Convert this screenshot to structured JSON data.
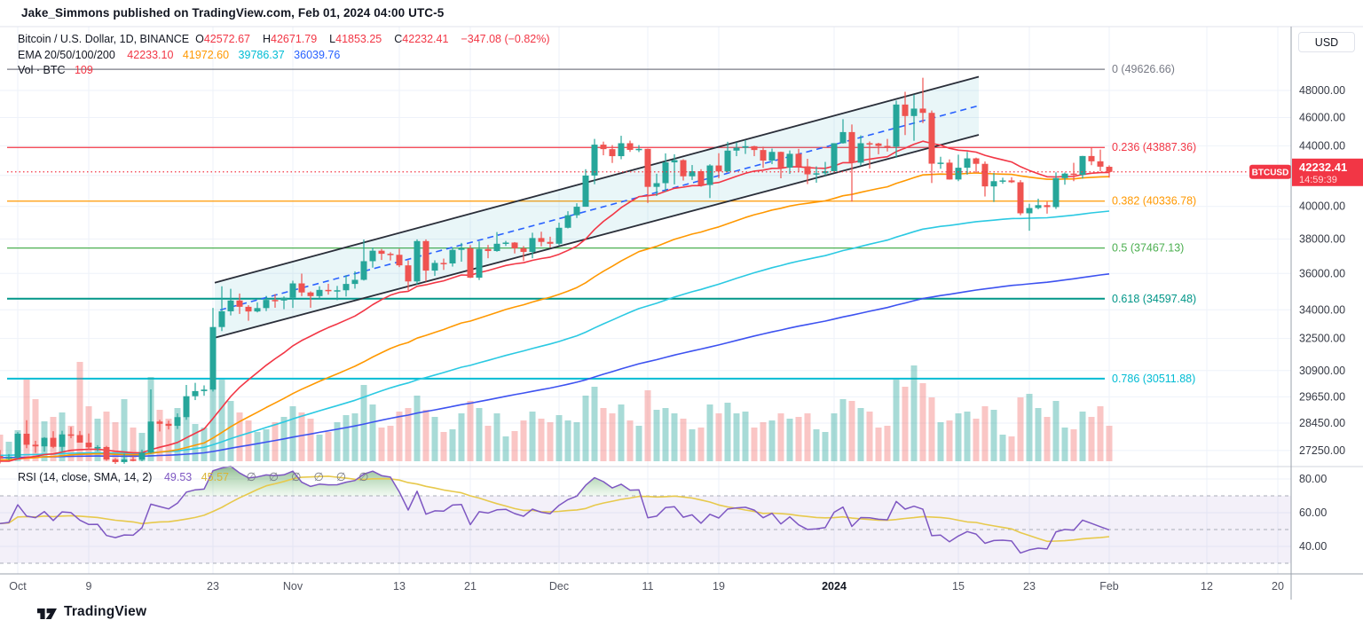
{
  "attribution": "Jake_Simmons published on TradingView.com, Feb 01, 2024 04:00 UTC-5",
  "symbol_legend": {
    "title": "Bitcoin / U.S. Dollar, 1D, BINANCE",
    "open_label": "O",
    "open": "42572.67",
    "high_label": "H",
    "high": "42671.79",
    "low_label": "L",
    "low": "41853.25",
    "close_label": "C",
    "close": "42232.41",
    "change": "−347.08 (−0.82%)"
  },
  "ema_legend": {
    "label": "EMA 20/50/100/200",
    "ema20": "42233.10",
    "ema50": "41972.60",
    "ema100": "39786.37",
    "ema200": "36039.76"
  },
  "volume_legend": {
    "label": "Vol · BTC",
    "value": "109"
  },
  "rsi_legend": {
    "label": "RSI (14, close, SMA, 14, 2)",
    "rsi_value": "49.53",
    "sma_value": "45.57",
    "empty_slots": [
      "∅",
      "∅",
      "∅",
      "∅",
      "∅",
      "∅"
    ]
  },
  "price_axis": {
    "currency_button": "USD",
    "ticks": [
      48000,
      46000,
      44000,
      40000,
      38000,
      36000,
      34000,
      32500,
      30900,
      29650,
      28450,
      27250
    ],
    "grid_extra": [
      42000
    ],
    "price_tag": {
      "symbol": "BTCUSD",
      "price": "42232.41",
      "countdown": "14:59:39"
    }
  },
  "time_axis": {
    "ticks": [
      {
        "label": "Oct",
        "day": 0
      },
      {
        "label": "9",
        "day": 8
      },
      {
        "label": "23",
        "day": 22
      },
      {
        "label": "Nov",
        "day": 31
      },
      {
        "label": "13",
        "day": 43
      },
      {
        "label": "21",
        "day": 51
      },
      {
        "label": "Dec",
        "day": 61
      },
      {
        "label": "11",
        "day": 71
      },
      {
        "label": "19",
        "day": 79
      },
      {
        "label": "2024",
        "day": 92,
        "bold": true
      },
      {
        "label": "15",
        "day": 106
      },
      {
        "label": "23",
        "day": 114
      },
      {
        "label": "Feb",
        "day": 123
      },
      {
        "label": "12",
        "day": 134
      },
      {
        "label": "20",
        "day": 142
      }
    ]
  },
  "rsi_axis": {
    "ticks": [
      80,
      60,
      40
    ],
    "dashed_levels": [
      70,
      50,
      30
    ],
    "band": [
      30,
      70
    ]
  },
  "fib_levels": [
    {
      "level": "0",
      "price": "49626.66",
      "value": 49626.66,
      "color": "#787b86"
    },
    {
      "level": "0.236",
      "price": "43887.36",
      "value": 43887.36,
      "color": "#f23645"
    },
    {
      "level": "0.382",
      "price": "40336.78",
      "value": 40336.78,
      "color": "#ff9800"
    },
    {
      "level": "0.5",
      "price": "37467.13",
      "value": 37467.13,
      "color": "#4caf50"
    },
    {
      "level": "0.618",
      "price": "34597.48",
      "value": 34597.48,
      "color": "#009688"
    },
    {
      "level": "0.786",
      "price": "30511.88",
      "value": 30511.88,
      "color": "#00bcd4"
    }
  ],
  "current_price": 42232.41,
  "brand": {
    "wordmark": "TradingView"
  },
  "colors": {
    "up": "#26a69a",
    "down": "#ef5350",
    "vol_up": "rgba(38,166,154,0.40)",
    "vol_down": "rgba(239,83,80,0.33)",
    "ema20": "#f23645",
    "ema50": "#ff9800",
    "ema100": "#2bc9e2",
    "ema200": "#3d52f0",
    "rsi_line": "#7e57c2",
    "rsi_sma": "#e7c94c",
    "rsi_band_fill": "rgba(126,87,194,0.09)",
    "tag_bg": "#f23645",
    "grid": "#eef2f9",
    "separator": "#d1d4dc",
    "axis_line": "#9aa0ab",
    "channel_line": "#2a2e39",
    "channel_fill": "rgba(42,165,190,0.10)",
    "channel_mid": "#2962ff",
    "axis_text": "#363a45",
    "time_text": "#50535e"
  },
  "chart_data": {
    "type": "candlestick",
    "symbol": "BTCUSD",
    "exchange": "BINANCE",
    "interval": "1D",
    "price_scale": "log",
    "ylim": [
      26550,
      53000
    ],
    "overlays": {
      "ema_periods": [
        20,
        50,
        100,
        200
      ],
      "ema_seeds": {
        "20": 26750,
        "50": 26850,
        "100": 27050,
        "200": 26950
      }
    },
    "rsi_settings": {
      "period": 14,
      "source": "close",
      "smoothing_type": "SMA",
      "smoothing_length": 14,
      "seed_gain": 150,
      "seed_loss": 130
    },
    "channel": {
      "lower": {
        "day1": 22.2,
        "price1": 32540,
        "day2": 108.3,
        "price2": 44770
      },
      "upper": {
        "day1": 22.2,
        "price1": 35480,
        "day2": 108.3,
        "price2": 49050
      },
      "mid": {
        "day1": 22.8,
        "price1": 33990,
        "day2": 108.3,
        "price2": 46870
      }
    },
    "candles_format": [
      "date",
      "open",
      "high",
      "low",
      "close",
      "volume_rel"
    ],
    "candles": [
      [
        "Sep 29",
        27020,
        27270,
        26700,
        26910,
        30
      ],
      [
        "Sep 30",
        26910,
        27100,
        26850,
        26960,
        22
      ],
      [
        "Oct 1",
        26960,
        28050,
        26900,
        27980,
        35
      ],
      [
        "Oct 2",
        27980,
        28580,
        27350,
        27500,
        92
      ],
      [
        "Oct 3",
        27500,
        27670,
        27150,
        27430,
        70
      ],
      [
        "Oct 4",
        27430,
        27830,
        27200,
        27800,
        45
      ],
      [
        "Oct 5",
        27800,
        28090,
        27350,
        27410,
        50
      ],
      [
        "Oct 6",
        27410,
        28110,
        27190,
        27950,
        55
      ],
      [
        "Oct 7",
        27950,
        28280,
        27780,
        27920,
        40
      ],
      [
        "Oct 8",
        27920,
        28100,
        27650,
        27590,
        112
      ],
      [
        "Oct 9",
        27590,
        27990,
        27270,
        27390,
        62
      ],
      [
        "Oct 10",
        27390,
        27480,
        27220,
        27400,
        48
      ],
      [
        "Oct 11",
        27400,
        27450,
        26820,
        26870,
        56
      ],
      [
        "Oct 12",
        26870,
        26930,
        26600,
        26760,
        44
      ],
      [
        "Oct 13",
        26760,
        27110,
        26690,
        26870,
        70
      ],
      [
        "Oct 14",
        26870,
        27010,
        26790,
        26860,
        38
      ],
      [
        "Oct 15",
        26860,
        27290,
        26800,
        27160,
        32
      ],
      [
        "Oct 16",
        27160,
        30000,
        27120,
        28520,
        95
      ],
      [
        "Oct 17",
        28520,
        28600,
        28080,
        28420,
        58
      ],
      [
        "Oct 18",
        28420,
        28560,
        28170,
        28330,
        48
      ],
      [
        "Oct 19",
        28330,
        28890,
        28190,
        28720,
        60
      ],
      [
        "Oct 20",
        28720,
        30210,
        28600,
        29680,
        72
      ],
      [
        "Oct 21",
        29680,
        30310,
        29500,
        29920,
        42
      ],
      [
        "Oct 22",
        29920,
        30190,
        29700,
        29990,
        38
      ],
      [
        "Oct 23",
        29990,
        34100,
        29900,
        33090,
        98
      ],
      [
        "Oct 24",
        33090,
        35280,
        32880,
        33920,
        92
      ],
      [
        "Oct 25",
        33920,
        35140,
        33700,
        34500,
        68
      ],
      [
        "Oct 26",
        34500,
        34880,
        33780,
        34160,
        55
      ],
      [
        "Oct 27",
        34160,
        34250,
        33420,
        33910,
        46
      ],
      [
        "Oct 28",
        33910,
        34400,
        33860,
        34090,
        33
      ],
      [
        "Oct 29",
        34090,
        34750,
        33930,
        34530,
        36
      ],
      [
        "Oct 30",
        34530,
        34850,
        34110,
        34500,
        44
      ],
      [
        "Oct 31",
        34500,
        34720,
        34030,
        34650,
        50
      ],
      [
        "Nov 1",
        34650,
        35590,
        34100,
        35440,
        62
      ],
      [
        "Nov 2",
        35440,
        35990,
        34740,
        34940,
        55
      ],
      [
        "Nov 3",
        34940,
        35000,
        34110,
        34740,
        48
      ],
      [
        "Nov 4",
        34740,
        35280,
        34610,
        35080,
        30
      ],
      [
        "Nov 5",
        35080,
        35420,
        34820,
        35050,
        33
      ],
      [
        "Nov 6",
        35050,
        35300,
        34520,
        35060,
        44
      ],
      [
        "Nov 7",
        35060,
        35900,
        34720,
        35410,
        52
      ],
      [
        "Nov 8",
        35410,
        36120,
        35150,
        35640,
        54
      ],
      [
        "Nov 9",
        35640,
        37970,
        35600,
        36700,
        86
      ],
      [
        "Nov 10",
        36700,
        37500,
        36330,
        37310,
        64
      ],
      [
        "Nov 11",
        37310,
        37410,
        36770,
        37130,
        38
      ],
      [
        "Nov 12",
        37130,
        37220,
        36740,
        37070,
        40
      ],
      [
        "Nov 13",
        37070,
        37420,
        36360,
        36460,
        56
      ],
      [
        "Nov 14",
        36460,
        36750,
        35060,
        35550,
        60
      ],
      [
        "Nov 15",
        35550,
        37980,
        35360,
        37880,
        74
      ],
      [
        "Nov 16",
        37880,
        37980,
        35540,
        36160,
        58
      ],
      [
        "Nov 17",
        36160,
        36750,
        35860,
        36600,
        50
      ],
      [
        "Nov 18",
        36600,
        36850,
        36200,
        36570,
        33
      ],
      [
        "Nov 19",
        36570,
        37500,
        36390,
        37360,
        36
      ],
      [
        "Nov 20",
        37360,
        37770,
        36670,
        37450,
        54
      ],
      [
        "Nov 21",
        37450,
        37640,
        35740,
        35760,
        68
      ],
      [
        "Nov 22",
        35760,
        37860,
        35630,
        37410,
        60
      ],
      [
        "Nov 23",
        37410,
        37650,
        36870,
        37290,
        40
      ],
      [
        "Nov 24",
        37290,
        38420,
        37250,
        37720,
        54
      ],
      [
        "Nov 25",
        37720,
        37890,
        37590,
        37790,
        28
      ],
      [
        "Nov 26",
        37790,
        37820,
        37150,
        37450,
        34
      ],
      [
        "Nov 27",
        37450,
        37580,
        36710,
        37240,
        46
      ],
      [
        "Nov 28",
        37240,
        38380,
        36870,
        38060,
        56
      ],
      [
        "Nov 29",
        38060,
        38440,
        37570,
        37830,
        48
      ],
      [
        "Nov 30",
        37830,
        38140,
        37500,
        37720,
        44
      ],
      [
        "Dec 1",
        37720,
        38990,
        37620,
        38680,
        52
      ],
      [
        "Dec 2",
        38680,
        39700,
        38640,
        39450,
        46
      ],
      [
        "Dec 3",
        39450,
        40200,
        39280,
        39980,
        44
      ],
      [
        "Dec 4",
        39980,
        42410,
        39980,
        41990,
        74
      ],
      [
        "Dec 5",
        41990,
        44480,
        41420,
        44080,
        84
      ],
      [
        "Dec 6",
        44080,
        44290,
        43350,
        43770,
        60
      ],
      [
        "Dec 7",
        43770,
        44050,
        42830,
        43290,
        54
      ],
      [
        "Dec 8",
        43290,
        44700,
        43080,
        44180,
        64
      ],
      [
        "Dec 9",
        44180,
        44360,
        43580,
        43720,
        46
      ],
      [
        "Dec 10",
        43720,
        44050,
        43570,
        43790,
        40
      ],
      [
        "Dec 11",
        43790,
        43810,
        40220,
        41250,
        80
      ],
      [
        "Dec 12",
        41250,
        42110,
        40660,
        41490,
        58
      ],
      [
        "Dec 13",
        41490,
        43480,
        40930,
        42870,
        60
      ],
      [
        "Dec 14",
        42870,
        43420,
        41410,
        43020,
        54
      ],
      [
        "Dec 15",
        43020,
        43080,
        41660,
        41940,
        48
      ],
      [
        "Dec 16",
        41940,
        42690,
        41700,
        42280,
        36
      ],
      [
        "Dec 17",
        42280,
        42410,
        41260,
        41370,
        38
      ],
      [
        "Dec 18",
        41370,
        42740,
        40530,
        42660,
        64
      ],
      [
        "Dec 19",
        42660,
        43490,
        41810,
        42260,
        54
      ],
      [
        "Dec 20",
        42260,
        44280,
        42210,
        43670,
        66
      ],
      [
        "Dec 21",
        43670,
        44240,
        43290,
        43870,
        54
      ],
      [
        "Dec 22",
        43870,
        44400,
        43440,
        43970,
        56
      ],
      [
        "Dec 23",
        43970,
        44000,
        43290,
        43710,
        38
      ],
      [
        "Dec 24",
        43710,
        43940,
        42500,
        42990,
        44
      ],
      [
        "Dec 25",
        42990,
        43810,
        42750,
        43580,
        46
      ],
      [
        "Dec 26",
        43580,
        43600,
        41810,
        42520,
        54
      ],
      [
        "Dec 27",
        42520,
        43680,
        42100,
        43450,
        48
      ],
      [
        "Dec 28",
        43450,
        43790,
        42240,
        42600,
        50
      ],
      [
        "Dec 29",
        42600,
        43110,
        41430,
        42070,
        54
      ],
      [
        "Dec 30",
        42070,
        42600,
        41520,
        42140,
        36
      ],
      [
        "Dec 31",
        42140,
        42900,
        41990,
        42280,
        33
      ],
      [
        "Jan 1",
        42280,
        44180,
        42180,
        44180,
        54
      ],
      [
        "Jan 2",
        44180,
        45880,
        44150,
        44960,
        70
      ],
      [
        "Jan 3",
        44960,
        45500,
        40300,
        42850,
        68
      ],
      [
        "Jan 4",
        42850,
        44730,
        42650,
        44180,
        60
      ],
      [
        "Jan 5",
        44180,
        44300,
        42450,
        44160,
        56
      ],
      [
        "Jan 6",
        44160,
        44210,
        43420,
        43990,
        38
      ],
      [
        "Jan 7",
        43990,
        44480,
        43610,
        43940,
        40
      ],
      [
        "Jan 8",
        43940,
        47240,
        43180,
        46950,
        92
      ],
      [
        "Jan 9",
        46950,
        47900,
        44750,
        46110,
        84
      ],
      [
        "Jan 10",
        46110,
        47690,
        44350,
        46650,
        108
      ],
      [
        "Jan 11",
        46650,
        48970,
        45600,
        46340,
        88
      ],
      [
        "Jan 12",
        46340,
        46510,
        41500,
        42780,
        72
      ],
      [
        "Jan 13",
        42780,
        43250,
        42440,
        42850,
        44
      ],
      [
        "Jan 14",
        42850,
        43070,
        41720,
        41730,
        46
      ],
      [
        "Jan 15",
        41730,
        43390,
        41620,
        42510,
        54
      ],
      [
        "Jan 16",
        42510,
        43580,
        42050,
        43140,
        56
      ],
      [
        "Jan 17",
        43140,
        43190,
        42190,
        42770,
        48
      ],
      [
        "Jan 18",
        42770,
        42930,
        40630,
        41280,
        62
      ],
      [
        "Jan 19",
        41280,
        42150,
        40280,
        41620,
        58
      ],
      [
        "Jan 20",
        41620,
        41850,
        41450,
        41670,
        30
      ],
      [
        "Jan 21",
        41670,
        41880,
        41500,
        41550,
        28
      ],
      [
        "Jan 22",
        41550,
        41690,
        39450,
        39570,
        72
      ],
      [
        "Jan 23",
        39570,
        40170,
        38500,
        39900,
        76
      ],
      [
        "Jan 24",
        39900,
        40490,
        39820,
        40080,
        60
      ],
      [
        "Jan 25",
        40080,
        40300,
        39550,
        39960,
        50
      ],
      [
        "Jan 26",
        39960,
        42200,
        39840,
        41820,
        68
      ],
      [
        "Jan 27",
        41820,
        42190,
        41390,
        42120,
        38
      ],
      [
        "Jan 28",
        42120,
        42840,
        41620,
        42030,
        36
      ],
      [
        "Jan 29",
        42030,
        43310,
        41790,
        43300,
        56
      ],
      [
        "Jan 30",
        43300,
        43880,
        42680,
        42940,
        50
      ],
      [
        "Jan 31",
        42940,
        43740,
        42280,
        42580,
        62
      ],
      [
        "Feb 1",
        42572.67,
        42671.79,
        41853.25,
        42232.41,
        40
      ]
    ]
  }
}
